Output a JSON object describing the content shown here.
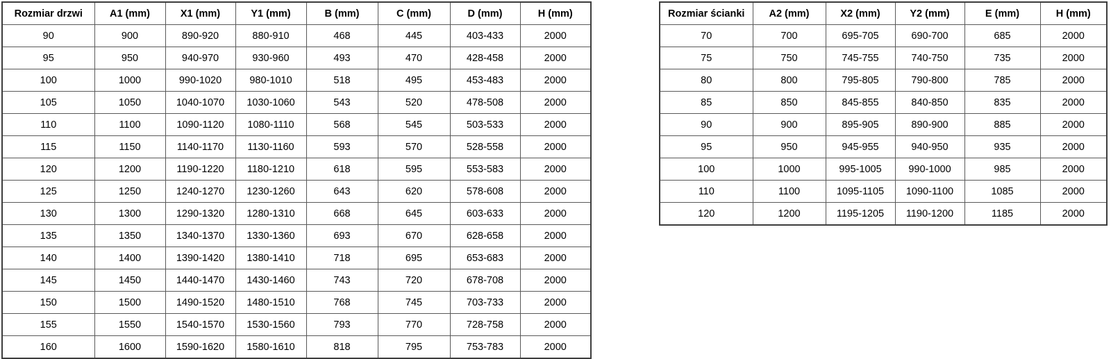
{
  "colors": {
    "background": "#ffffff",
    "text": "#000000",
    "border": "#595959",
    "outer_border": "#3d3d3d"
  },
  "tables": [
    {
      "title": "door-size-table",
      "headers": [
        "Rozmiar drzwi",
        "A1 (mm)",
        "X1 (mm)",
        "Y1 (mm)",
        "B (mm)",
        "C (mm)",
        "D (mm)",
        "H (mm)"
      ],
      "rows": [
        [
          "90",
          "900",
          "890-920",
          "880-910",
          "468",
          "445",
          "403-433",
          "2000"
        ],
        [
          "95",
          "950",
          "940-970",
          "930-960",
          "493",
          "470",
          "428-458",
          "2000"
        ],
        [
          "100",
          "1000",
          "990-1020",
          "980-1010",
          "518",
          "495",
          "453-483",
          "2000"
        ],
        [
          "105",
          "1050",
          "1040-1070",
          "1030-1060",
          "543",
          "520",
          "478-508",
          "2000"
        ],
        [
          "110",
          "1100",
          "1090-1120",
          "1080-1110",
          "568",
          "545",
          "503-533",
          "2000"
        ],
        [
          "115",
          "1150",
          "1140-1170",
          "1130-1160",
          "593",
          "570",
          "528-558",
          "2000"
        ],
        [
          "120",
          "1200",
          "1190-1220",
          "1180-1210",
          "618",
          "595",
          "553-583",
          "2000"
        ],
        [
          "125",
          "1250",
          "1240-1270",
          "1230-1260",
          "643",
          "620",
          "578-608",
          "2000"
        ],
        [
          "130",
          "1300",
          "1290-1320",
          "1280-1310",
          "668",
          "645",
          "603-633",
          "2000"
        ],
        [
          "135",
          "1350",
          "1340-1370",
          "1330-1360",
          "693",
          "670",
          "628-658",
          "2000"
        ],
        [
          "140",
          "1400",
          "1390-1420",
          "1380-1410",
          "718",
          "695",
          "653-683",
          "2000"
        ],
        [
          "145",
          "1450",
          "1440-1470",
          "1430-1460",
          "743",
          "720",
          "678-708",
          "2000"
        ],
        [
          "150",
          "1500",
          "1490-1520",
          "1480-1510",
          "768",
          "745",
          "703-733",
          "2000"
        ],
        [
          "155",
          "1550",
          "1540-1570",
          "1530-1560",
          "793",
          "770",
          "728-758",
          "2000"
        ],
        [
          "160",
          "1600",
          "1590-1620",
          "1580-1610",
          "818",
          "795",
          "753-783",
          "2000"
        ]
      ]
    },
    {
      "title": "wall-size-table",
      "headers": [
        "Rozmiar ścianki",
        "A2 (mm)",
        "X2 (mm)",
        "Y2 (mm)",
        "E (mm)",
        "H (mm)"
      ],
      "rows": [
        [
          "70",
          "700",
          "695-705",
          "690-700",
          "685",
          "2000"
        ],
        [
          "75",
          "750",
          "745-755",
          "740-750",
          "735",
          "2000"
        ],
        [
          "80",
          "800",
          "795-805",
          "790-800",
          "785",
          "2000"
        ],
        [
          "85",
          "850",
          "845-855",
          "840-850",
          "835",
          "2000"
        ],
        [
          "90",
          "900",
          "895-905",
          "890-900",
          "885",
          "2000"
        ],
        [
          "95",
          "950",
          "945-955",
          "940-950",
          "935",
          "2000"
        ],
        [
          "100",
          "1000",
          "995-1005",
          "990-1000",
          "985",
          "2000"
        ],
        [
          "110",
          "1100",
          "1095-1105",
          "1090-1100",
          "1085",
          "2000"
        ],
        [
          "120",
          "1200",
          "1195-1205",
          "1190-1200",
          "1185",
          "2000"
        ]
      ]
    }
  ]
}
